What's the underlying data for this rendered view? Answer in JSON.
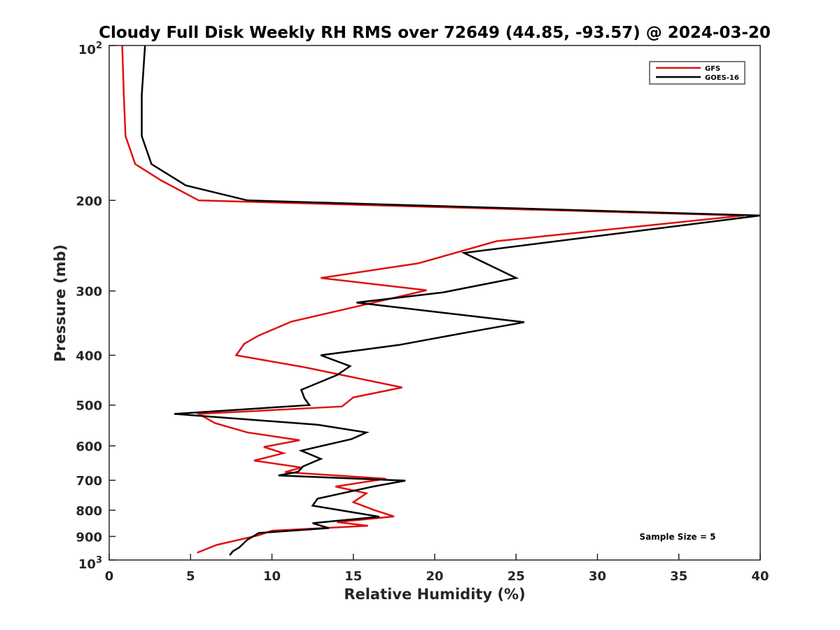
{
  "chart_data": {
    "type": "line",
    "title": "Cloudy Full Disk Weekly RH RMS over 72649 (44.85, -93.57) @ 2024-03-20",
    "xlabel": "Relative Humidity (%)",
    "ylabel": "Pressure (mb)",
    "xlim": [
      0,
      40
    ],
    "ylim": [
      100,
      1000
    ],
    "yscale": "log",
    "y_reversed": true,
    "grid": false,
    "legend_position": "top-right",
    "x_ticks": [
      "0",
      "5",
      "10",
      "15",
      "20",
      "25",
      "30",
      "35",
      "40"
    ],
    "y_ticks": [
      {
        "value": 100,
        "base": "10",
        "exp": "2"
      },
      {
        "value": 200,
        "label": "200"
      },
      {
        "value": 300,
        "label": "300"
      },
      {
        "value": 400,
        "label": "400"
      },
      {
        "value": 500,
        "label": "500"
      },
      {
        "value": 600,
        "label": "600"
      },
      {
        "value": 700,
        "label": "700"
      },
      {
        "value": 800,
        "label": "800"
      },
      {
        "value": 900,
        "label": "900"
      },
      {
        "value": 1000,
        "base": "10",
        "exp": "3"
      }
    ],
    "annotation": "Sample Size = 5",
    "series": [
      {
        "name": "GFS",
        "color": "#e01010",
        "points": [
          [
            0.8,
            100
          ],
          [
            0.9,
            125
          ],
          [
            1.0,
            150
          ],
          [
            1.6,
            170
          ],
          [
            3.2,
            183
          ],
          [
            5.5,
            200
          ],
          [
            39.0,
            214
          ],
          [
            23.8,
            240
          ],
          [
            19.0,
            265
          ],
          [
            13.0,
            283
          ],
          [
            19.5,
            299
          ],
          [
            15.5,
            320
          ],
          [
            11.2,
            344
          ],
          [
            9.2,
            366
          ],
          [
            8.3,
            380
          ],
          [
            7.8,
            400
          ],
          [
            12.0,
            422
          ],
          [
            18.0,
            462
          ],
          [
            15.0,
            483
          ],
          [
            14.3,
            503
          ],
          [
            5.5,
            520
          ],
          [
            6.5,
            542
          ],
          [
            8.5,
            565
          ],
          [
            11.7,
            585
          ],
          [
            9.5,
            603
          ],
          [
            10.7,
            620
          ],
          [
            8.9,
            641
          ],
          [
            11.8,
            661
          ],
          [
            11.5,
            665
          ],
          [
            10.8,
            675
          ],
          [
            17.0,
            695
          ],
          [
            13.9,
            720
          ],
          [
            15.8,
            742
          ],
          [
            15.0,
            772
          ],
          [
            16.3,
            800
          ],
          [
            17.5,
            823
          ],
          [
            14.0,
            844
          ],
          [
            15.9,
            858
          ],
          [
            10.0,
            877
          ],
          [
            9.2,
            895
          ],
          [
            6.6,
            935
          ],
          [
            5.4,
            968
          ]
        ]
      },
      {
        "name": "GOES-16",
        "color": "#000000",
        "points": [
          [
            2.2,
            100
          ],
          [
            2.0,
            125
          ],
          [
            2.0,
            150
          ],
          [
            2.6,
            170
          ],
          [
            4.7,
            187
          ],
          [
            8.5,
            200
          ],
          [
            40.0,
            214
          ],
          [
            21.8,
            253
          ],
          [
            25.0,
            283
          ],
          [
            20.5,
            302
          ],
          [
            15.2,
            316
          ],
          [
            25.5,
            345
          ],
          [
            21.8,
            362
          ],
          [
            17.8,
            382
          ],
          [
            13.0,
            400
          ],
          [
            14.8,
            420
          ],
          [
            14.0,
            437
          ],
          [
            11.8,
            467
          ],
          [
            12.0,
            485
          ],
          [
            12.3,
            500
          ],
          [
            4.0,
            520
          ],
          [
            12.8,
            546
          ],
          [
            15.8,
            565
          ],
          [
            14.9,
            582
          ],
          [
            11.8,
            613
          ],
          [
            13.0,
            636
          ],
          [
            11.9,
            658
          ],
          [
            11.6,
            674
          ],
          [
            10.4,
            685
          ],
          [
            18.2,
            701
          ],
          [
            16.2,
            720
          ],
          [
            12.8,
            760
          ],
          [
            12.5,
            784
          ],
          [
            16.6,
            824
          ],
          [
            12.5,
            848
          ],
          [
            13.5,
            867
          ],
          [
            9.2,
            886
          ],
          [
            8.5,
            913
          ],
          [
            8.0,
            945
          ],
          [
            7.6,
            962
          ],
          [
            7.4,
            979
          ]
        ]
      }
    ]
  }
}
